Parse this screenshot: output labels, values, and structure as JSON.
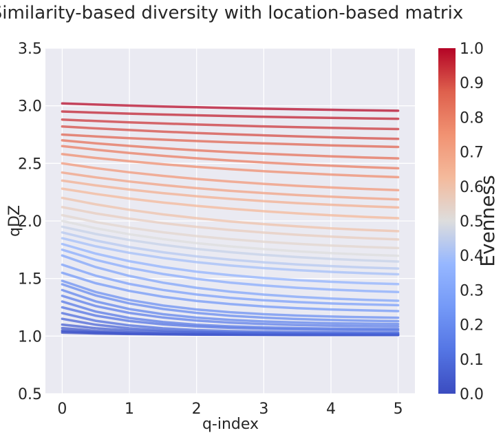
{
  "chart_data": {
    "type": "line",
    "title": "Similarity-based diversity with location-based matrix",
    "xlabel": "q-index",
    "ylabel": "qDZ",
    "xlim": [
      -0.25,
      5.25
    ],
    "ylim": [
      0.5,
      3.5
    ],
    "xticks": [
      0,
      1,
      2,
      3,
      4,
      5
    ],
    "xtick_labels": [
      "0",
      "1",
      "2",
      "3",
      "4",
      "5"
    ],
    "yticks": [
      0.5,
      1.0,
      1.5,
      2.0,
      2.5,
      3.0,
      3.5
    ],
    "ytick_labels": [
      "0.5",
      "1.0",
      "1.5",
      "2.0",
      "2.5",
      "3.0",
      "3.5"
    ],
    "grid": true,
    "x": [
      0,
      0.5,
      1,
      1.5,
      2,
      2.5,
      3,
      3.5,
      4,
      4.5,
      5
    ],
    "line_model": "each series decays from start (q=0) toward end (q=5) with rate k: y = end + (start-end)*exp(-k*q)",
    "colorbar": {
      "label": "Evenness",
      "colormap": "coolwarm",
      "range": [
        0.0,
        1.0
      ],
      "ticks": [
        0.0,
        0.1,
        0.2,
        0.3,
        0.4,
        0.5,
        0.6,
        0.7,
        0.8,
        0.9,
        1.0
      ],
      "tick_labels": [
        "0.0",
        "0.1",
        "0.2",
        "0.3",
        "0.4",
        "0.5",
        "0.6",
        "0.7",
        "0.8",
        "0.9",
        "1.0"
      ]
    },
    "series": [
      {
        "evenness": 0.02,
        "start": 1.03,
        "end": 1.01,
        "k": 1.0
      },
      {
        "evenness": 0.03,
        "start": 1.04,
        "end": 1.01,
        "k": 1.0
      },
      {
        "evenness": 0.04,
        "start": 1.05,
        "end": 1.01,
        "k": 1.0
      },
      {
        "evenness": 0.05,
        "start": 1.07,
        "end": 1.01,
        "k": 1.0
      },
      {
        "evenness": 0.06,
        "start": 1.1,
        "end": 1.02,
        "k": 1.0
      },
      {
        "evenness": 0.08,
        "start": 1.15,
        "end": 1.02,
        "k": 1.0
      },
      {
        "evenness": 0.1,
        "start": 1.2,
        "end": 1.03,
        "k": 1.0
      },
      {
        "evenness": 0.12,
        "start": 1.25,
        "end": 1.05,
        "k": 0.9
      },
      {
        "evenness": 0.14,
        "start": 1.3,
        "end": 1.06,
        "k": 0.9
      },
      {
        "evenness": 0.16,
        "start": 1.35,
        "end": 1.08,
        "k": 0.8
      },
      {
        "evenness": 0.18,
        "start": 1.4,
        "end": 1.1,
        "k": 0.8
      },
      {
        "evenness": 0.2,
        "start": 1.45,
        "end": 1.12,
        "k": 0.7
      },
      {
        "evenness": 0.22,
        "start": 1.48,
        "end": 1.15,
        "k": 0.7
      },
      {
        "evenness": 0.25,
        "start": 1.55,
        "end": 1.2,
        "k": 0.6
      },
      {
        "evenness": 0.28,
        "start": 1.62,
        "end": 1.25,
        "k": 0.6
      },
      {
        "evenness": 0.3,
        "start": 1.7,
        "end": 1.28,
        "k": 0.55
      },
      {
        "evenness": 0.33,
        "start": 1.75,
        "end": 1.35,
        "k": 0.5
      },
      {
        "evenness": 0.36,
        "start": 1.8,
        "end": 1.42,
        "k": 0.5
      },
      {
        "evenness": 0.4,
        "start": 1.85,
        "end": 1.5,
        "k": 0.45
      },
      {
        "evenness": 0.43,
        "start": 1.9,
        "end": 1.55,
        "k": 0.45
      },
      {
        "evenness": 0.46,
        "start": 1.95,
        "end": 1.6,
        "k": 0.4
      },
      {
        "evenness": 0.5,
        "start": 2.0,
        "end": 1.65,
        "k": 0.4
      },
      {
        "evenness": 0.53,
        "start": 2.05,
        "end": 1.72,
        "k": 0.4
      },
      {
        "evenness": 0.56,
        "start": 2.12,
        "end": 1.78,
        "k": 0.35
      },
      {
        "evenness": 0.6,
        "start": 2.2,
        "end": 1.85,
        "k": 0.35
      },
      {
        "evenness": 0.63,
        "start": 2.28,
        "end": 1.95,
        "k": 0.3
      },
      {
        "evenness": 0.66,
        "start": 2.35,
        "end": 2.05,
        "k": 0.3
      },
      {
        "evenness": 0.7,
        "start": 2.42,
        "end": 2.12,
        "k": 0.3
      },
      {
        "evenness": 0.73,
        "start": 2.5,
        "end": 2.2,
        "k": 0.3
      },
      {
        "evenness": 0.76,
        "start": 2.58,
        "end": 2.3,
        "k": 0.25
      },
      {
        "evenness": 0.8,
        "start": 2.65,
        "end": 2.38,
        "k": 0.25
      },
      {
        "evenness": 0.83,
        "start": 2.7,
        "end": 2.48,
        "k": 0.25
      },
      {
        "evenness": 0.86,
        "start": 2.75,
        "end": 2.58,
        "k": 0.2
      },
      {
        "evenness": 0.9,
        "start": 2.82,
        "end": 2.65,
        "k": 0.2
      },
      {
        "evenness": 0.93,
        "start": 2.88,
        "end": 2.75,
        "k": 0.2
      },
      {
        "evenness": 0.96,
        "start": 2.95,
        "end": 2.85,
        "k": 0.2
      },
      {
        "evenness": 0.99,
        "start": 3.02,
        "end": 2.92,
        "k": 0.2
      }
    ]
  }
}
